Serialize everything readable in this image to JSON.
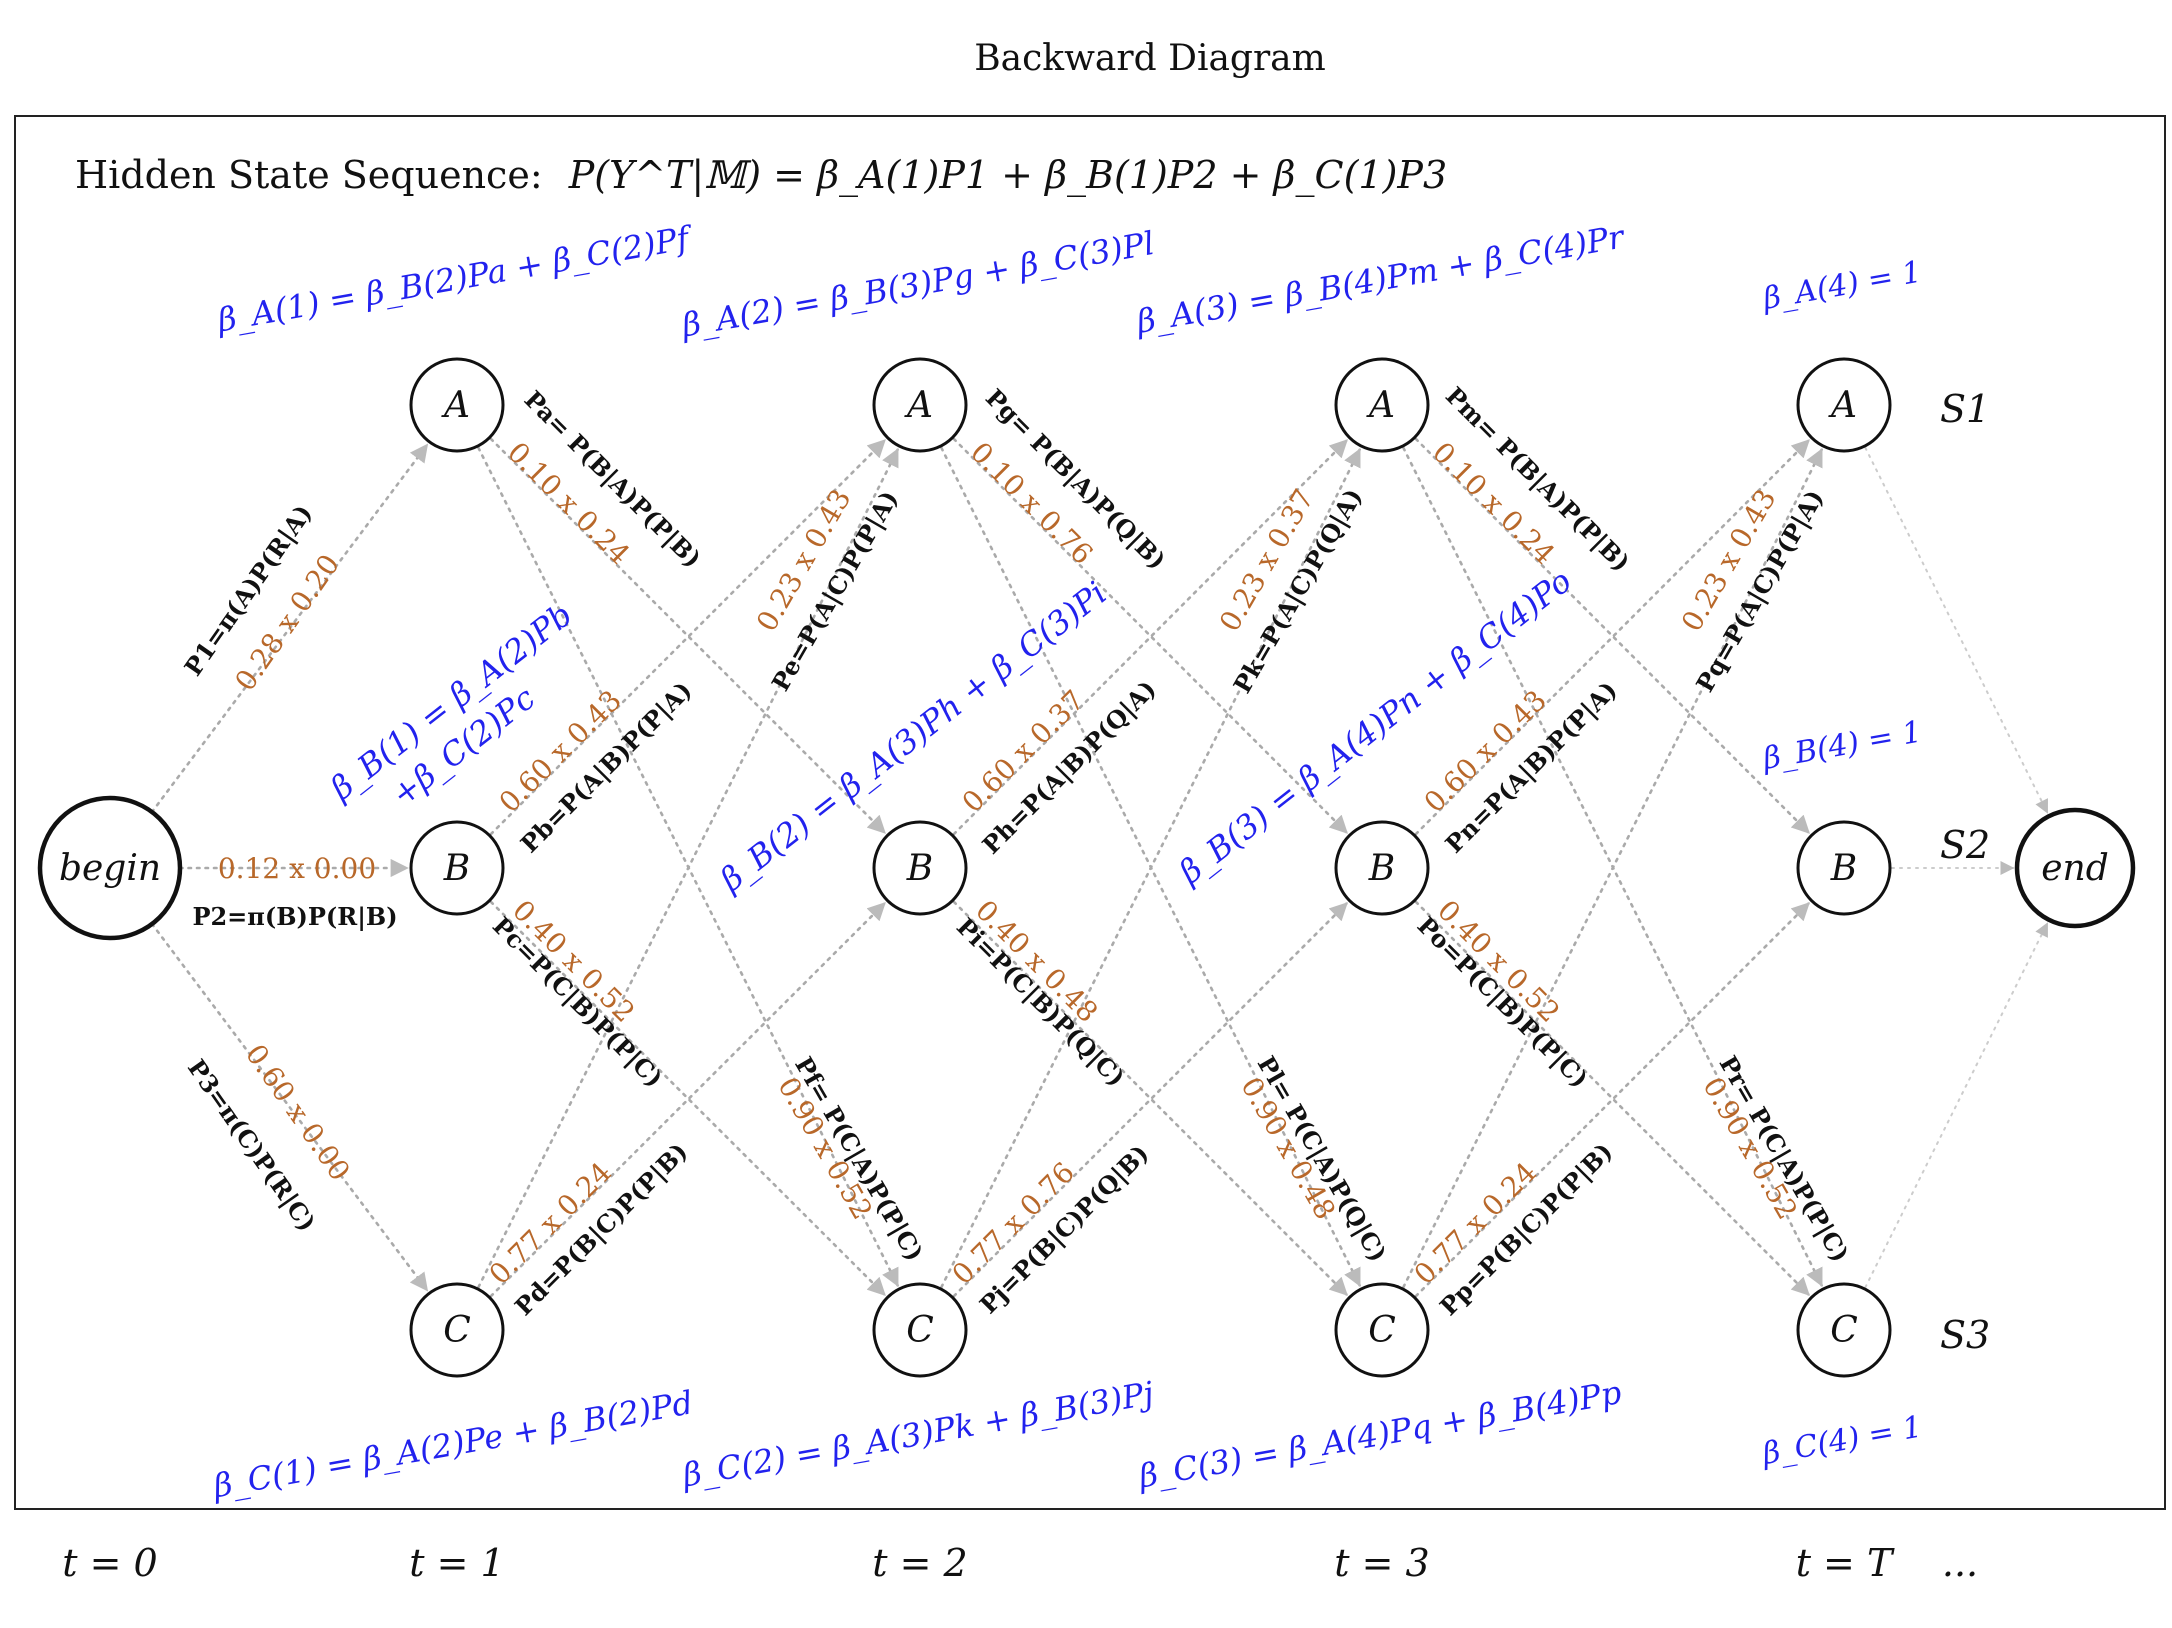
{
  "title": "Backward Diagram",
  "header": "Hidden State Sequence:  P(Y^T|𝕄) = β_A(1)P1 + β_B(1)P2 + β_C(1)P3",
  "header_parts": {
    "prefix": "Hidden State Sequence:",
    "formula": "P(Y^T|𝕄) = β_A(1)P1 + β_B(1)P2 + β_C(1)P3"
  },
  "colors": {
    "beta": "#2222ee",
    "multiplier": "#b8682a",
    "edge": "#aaaaaa",
    "node_stroke": "#111111",
    "text": "#111111"
  },
  "nodes": {
    "begin": "begin",
    "end": "end",
    "states": [
      "A",
      "B",
      "C"
    ]
  },
  "state_names": [
    "S1",
    "S2",
    "S3"
  ],
  "time_labels": [
    "t = 0",
    "t = 1",
    "t = 2",
    "t = 3",
    "t = T",
    "..."
  ],
  "begin_edges": [
    {
      "name": "P1=π(A)P(R|A)",
      "mult": "0.28 x 0.20"
    },
    {
      "name": "P2=π(B)P(R|B)",
      "mult": "0.12 x 0.00"
    },
    {
      "name": "P3=π(C)P(R|C)",
      "mult": "0.60 x 0.00"
    }
  ],
  "transitions": [
    {
      "step": 1,
      "AB": {
        "name": "Pa= P(B|A)P(P|B)",
        "mult": "0.10 x 0.24"
      },
      "AC": {
        "name": "Pf= P(C|A)P(P|C)",
        "mult": "0.90 x 0.52"
      },
      "BA": {
        "name": "Pb=P(A|B)P(P|A)",
        "mult": "0.60 x 0.43"
      },
      "BC": {
        "name": "Pc=P(C|B)P(P|C)",
        "mult": "0.40 x 0.52"
      },
      "CA": {
        "name": "Pe=P(A|C)P(P|A)",
        "mult": "0.23 x 0.43"
      },
      "CB": {
        "name": "Pd=P(B|C)P(P|B)",
        "mult": "0.77 x 0.24"
      }
    },
    {
      "step": 2,
      "AB": {
        "name": "Pg= P(B|A)P(Q|B)",
        "mult": "0.10 x 0.76"
      },
      "AC": {
        "name": "Pl= P(C|A)P(Q|C)",
        "mult": "0.90 x 0.48"
      },
      "BA": {
        "name": "Ph=P(A|B)P(Q|A)",
        "mult": "0.60 x 0.37"
      },
      "BC": {
        "name": "Pi=P(C|B)P(Q|C)",
        "mult": "0.40 x 0.48"
      },
      "CA": {
        "name": "Pk=P(A|C)P(Q|A)",
        "mult": "0.23 x 0.37"
      },
      "CB": {
        "name": "Pj=P(B|C)P(Q|B)",
        "mult": "0.77 x 0.76"
      }
    },
    {
      "step": 3,
      "AB": {
        "name": "Pm= P(B|A)P(P|B)",
        "mult": "0.10 x 0.24"
      },
      "AC": {
        "name": "Pr= P(C|A)P(P|C)",
        "mult": "0.90 x 0.52"
      },
      "BA": {
        "name": "Pn=P(A|B)P(P|A)",
        "mult": "0.60 x 0.43"
      },
      "BC": {
        "name": "Po=P(C|B)P(P|C)",
        "mult": "0.40 x 0.52"
      },
      "CA": {
        "name": "Pq=P(A|C)P(P|A)",
        "mult": "0.23 x 0.43"
      },
      "CB": {
        "name": "Pp=P(B|C)P(P|B)",
        "mult": "0.77 x 0.24"
      }
    }
  ],
  "betas": {
    "A": [
      "β_A(1) = β_B(2)Pa + β_C(2)Pf",
      "β_A(2) = β_B(3)Pg + β_C(3)Pl",
      "β_A(3) = β_B(4)Pm + β_C(4)Pr",
      "β_A(4) = 1"
    ],
    "B": [
      "β_B(1) = β_A(2)Pb +β_C(2)Pc",
      "β_B(2) = β_A(3)Ph + β_C(3)Pi",
      "β_B(3) = β_A(4)Pn + β_C(4)Po",
      "β_B(4) = 1"
    ],
    "C": [
      "β_C(1) = β_A(2)Pe + β_B(2)Pd",
      "β_C(2) = β_A(3)Pk + β_B(3)Pj",
      "β_C(3) = β_A(4)Pq + β_B(4)Pp",
      "β_C(4) = 1"
    ]
  },
  "beta_B1_lines": [
    "β_B(1) = β_A(2)Pb",
    "+β_C(2)Pc"
  ]
}
